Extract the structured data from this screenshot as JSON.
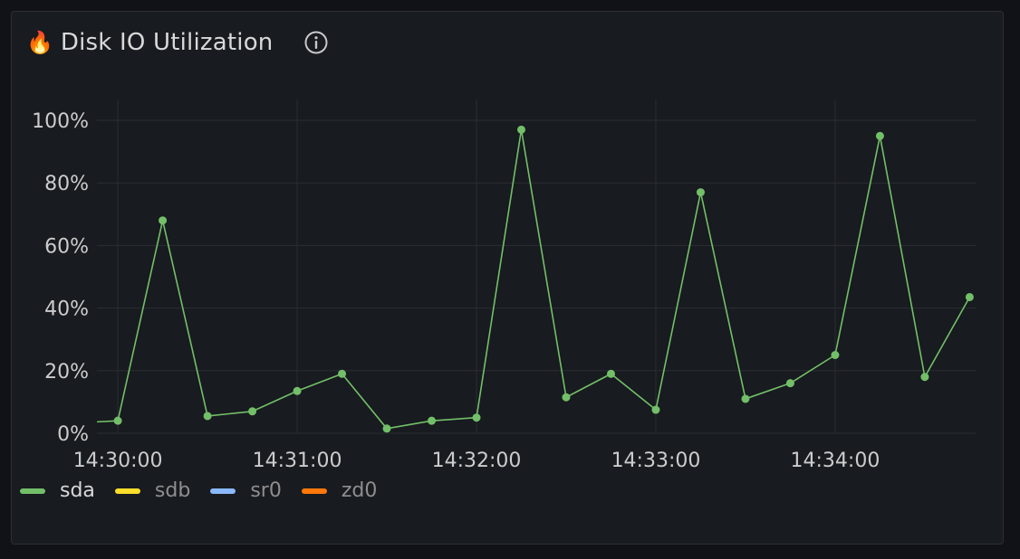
{
  "panel": {
    "icon": "fire-icon",
    "emoji": "🔥",
    "title": "Disk IO Utilization",
    "info_icon": "info-icon"
  },
  "chart_data": {
    "type": "line",
    "title": "Disk IO Utilization",
    "xlabel": "",
    "ylabel": "",
    "ylim": [
      0,
      100
    ],
    "y_ticks": [
      0,
      20,
      40,
      60,
      80,
      100
    ],
    "y_tick_labels": [
      "0%",
      "20%",
      "40%",
      "60%",
      "80%",
      "100%"
    ],
    "x_ticks": [
      "14:30:00",
      "14:31:00",
      "14:32:00",
      "14:33:00",
      "14:34:00"
    ],
    "xlim": [
      "14:29:53",
      "14:34:47"
    ],
    "grid": true,
    "legend_position": "bottom-left",
    "series": [
      {
        "name": "sda",
        "color": "#73bf69",
        "active": true,
        "x": [
          "14:29:50",
          "14:30:00",
          "14:30:15",
          "14:30:30",
          "14:30:45",
          "14:31:00",
          "14:31:15",
          "14:31:30",
          "14:31:45",
          "14:32:00",
          "14:32:15",
          "14:32:30",
          "14:32:45",
          "14:33:00",
          "14:33:15",
          "14:33:30",
          "14:33:45",
          "14:34:00",
          "14:34:15",
          "14:34:30",
          "14:34:45"
        ],
        "values": [
          3.5,
          4,
          68,
          5.5,
          7,
          13.5,
          19,
          1.5,
          4,
          5,
          97,
          11.5,
          19,
          7.5,
          77,
          11,
          16,
          25,
          95,
          18,
          43.5
        ]
      },
      {
        "name": "sdb",
        "color": "#fade2a",
        "active": false,
        "x": [],
        "values": []
      },
      {
        "name": "sr0",
        "color": "#8ab8ff",
        "active": false,
        "x": [],
        "values": []
      },
      {
        "name": "zd0",
        "color": "#ff780a",
        "active": false,
        "x": [],
        "values": []
      }
    ]
  }
}
